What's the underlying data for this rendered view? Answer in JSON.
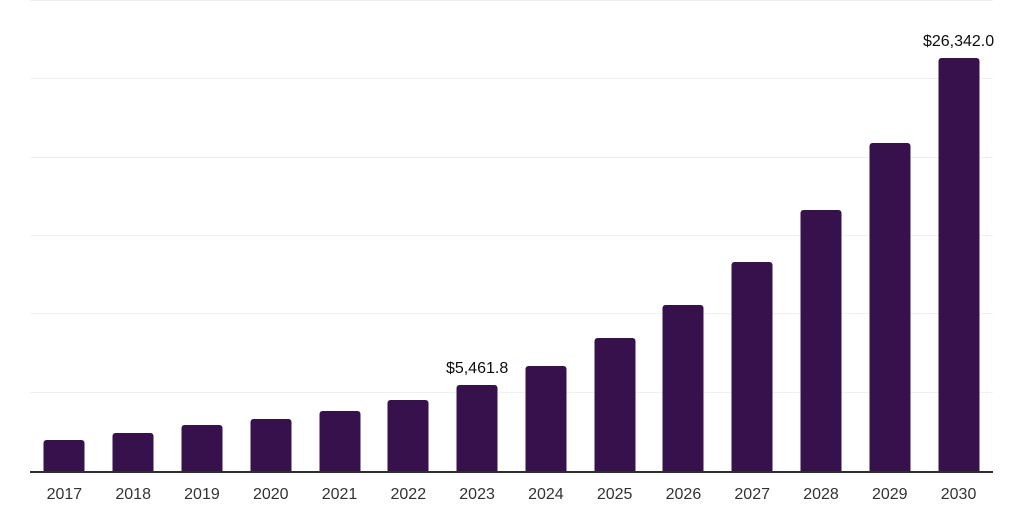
{
  "chart_data": {
    "type": "bar",
    "title": "",
    "xlabel": "",
    "ylabel": "",
    "categories": [
      "2017",
      "2018",
      "2019",
      "2020",
      "2021",
      "2022",
      "2023",
      "2024",
      "2025",
      "2026",
      "2027",
      "2028",
      "2029",
      "2030"
    ],
    "values": [
      2000,
      2450,
      2960,
      3300,
      3840,
      4540,
      5461.8,
      6700,
      8460,
      10600,
      13350,
      16650,
      20950,
      26342
    ],
    "value_labels": [
      "",
      "",
      "",
      "",
      "",
      "",
      "$5,461.8",
      "",
      "",
      "",
      "",
      "",
      "",
      "$26,342.0"
    ],
    "ylim": [
      0,
      30000
    ],
    "gridline_step": 5000,
    "grid": "horizontal",
    "legend": "none",
    "colors": {
      "bar": "#36114B",
      "gridline": "#F0F0F0",
      "axis_line": "#2E2E2E",
      "tick_label": "#333333",
      "value_label": "#0D0D0D",
      "background": "#FFFFFF"
    }
  }
}
